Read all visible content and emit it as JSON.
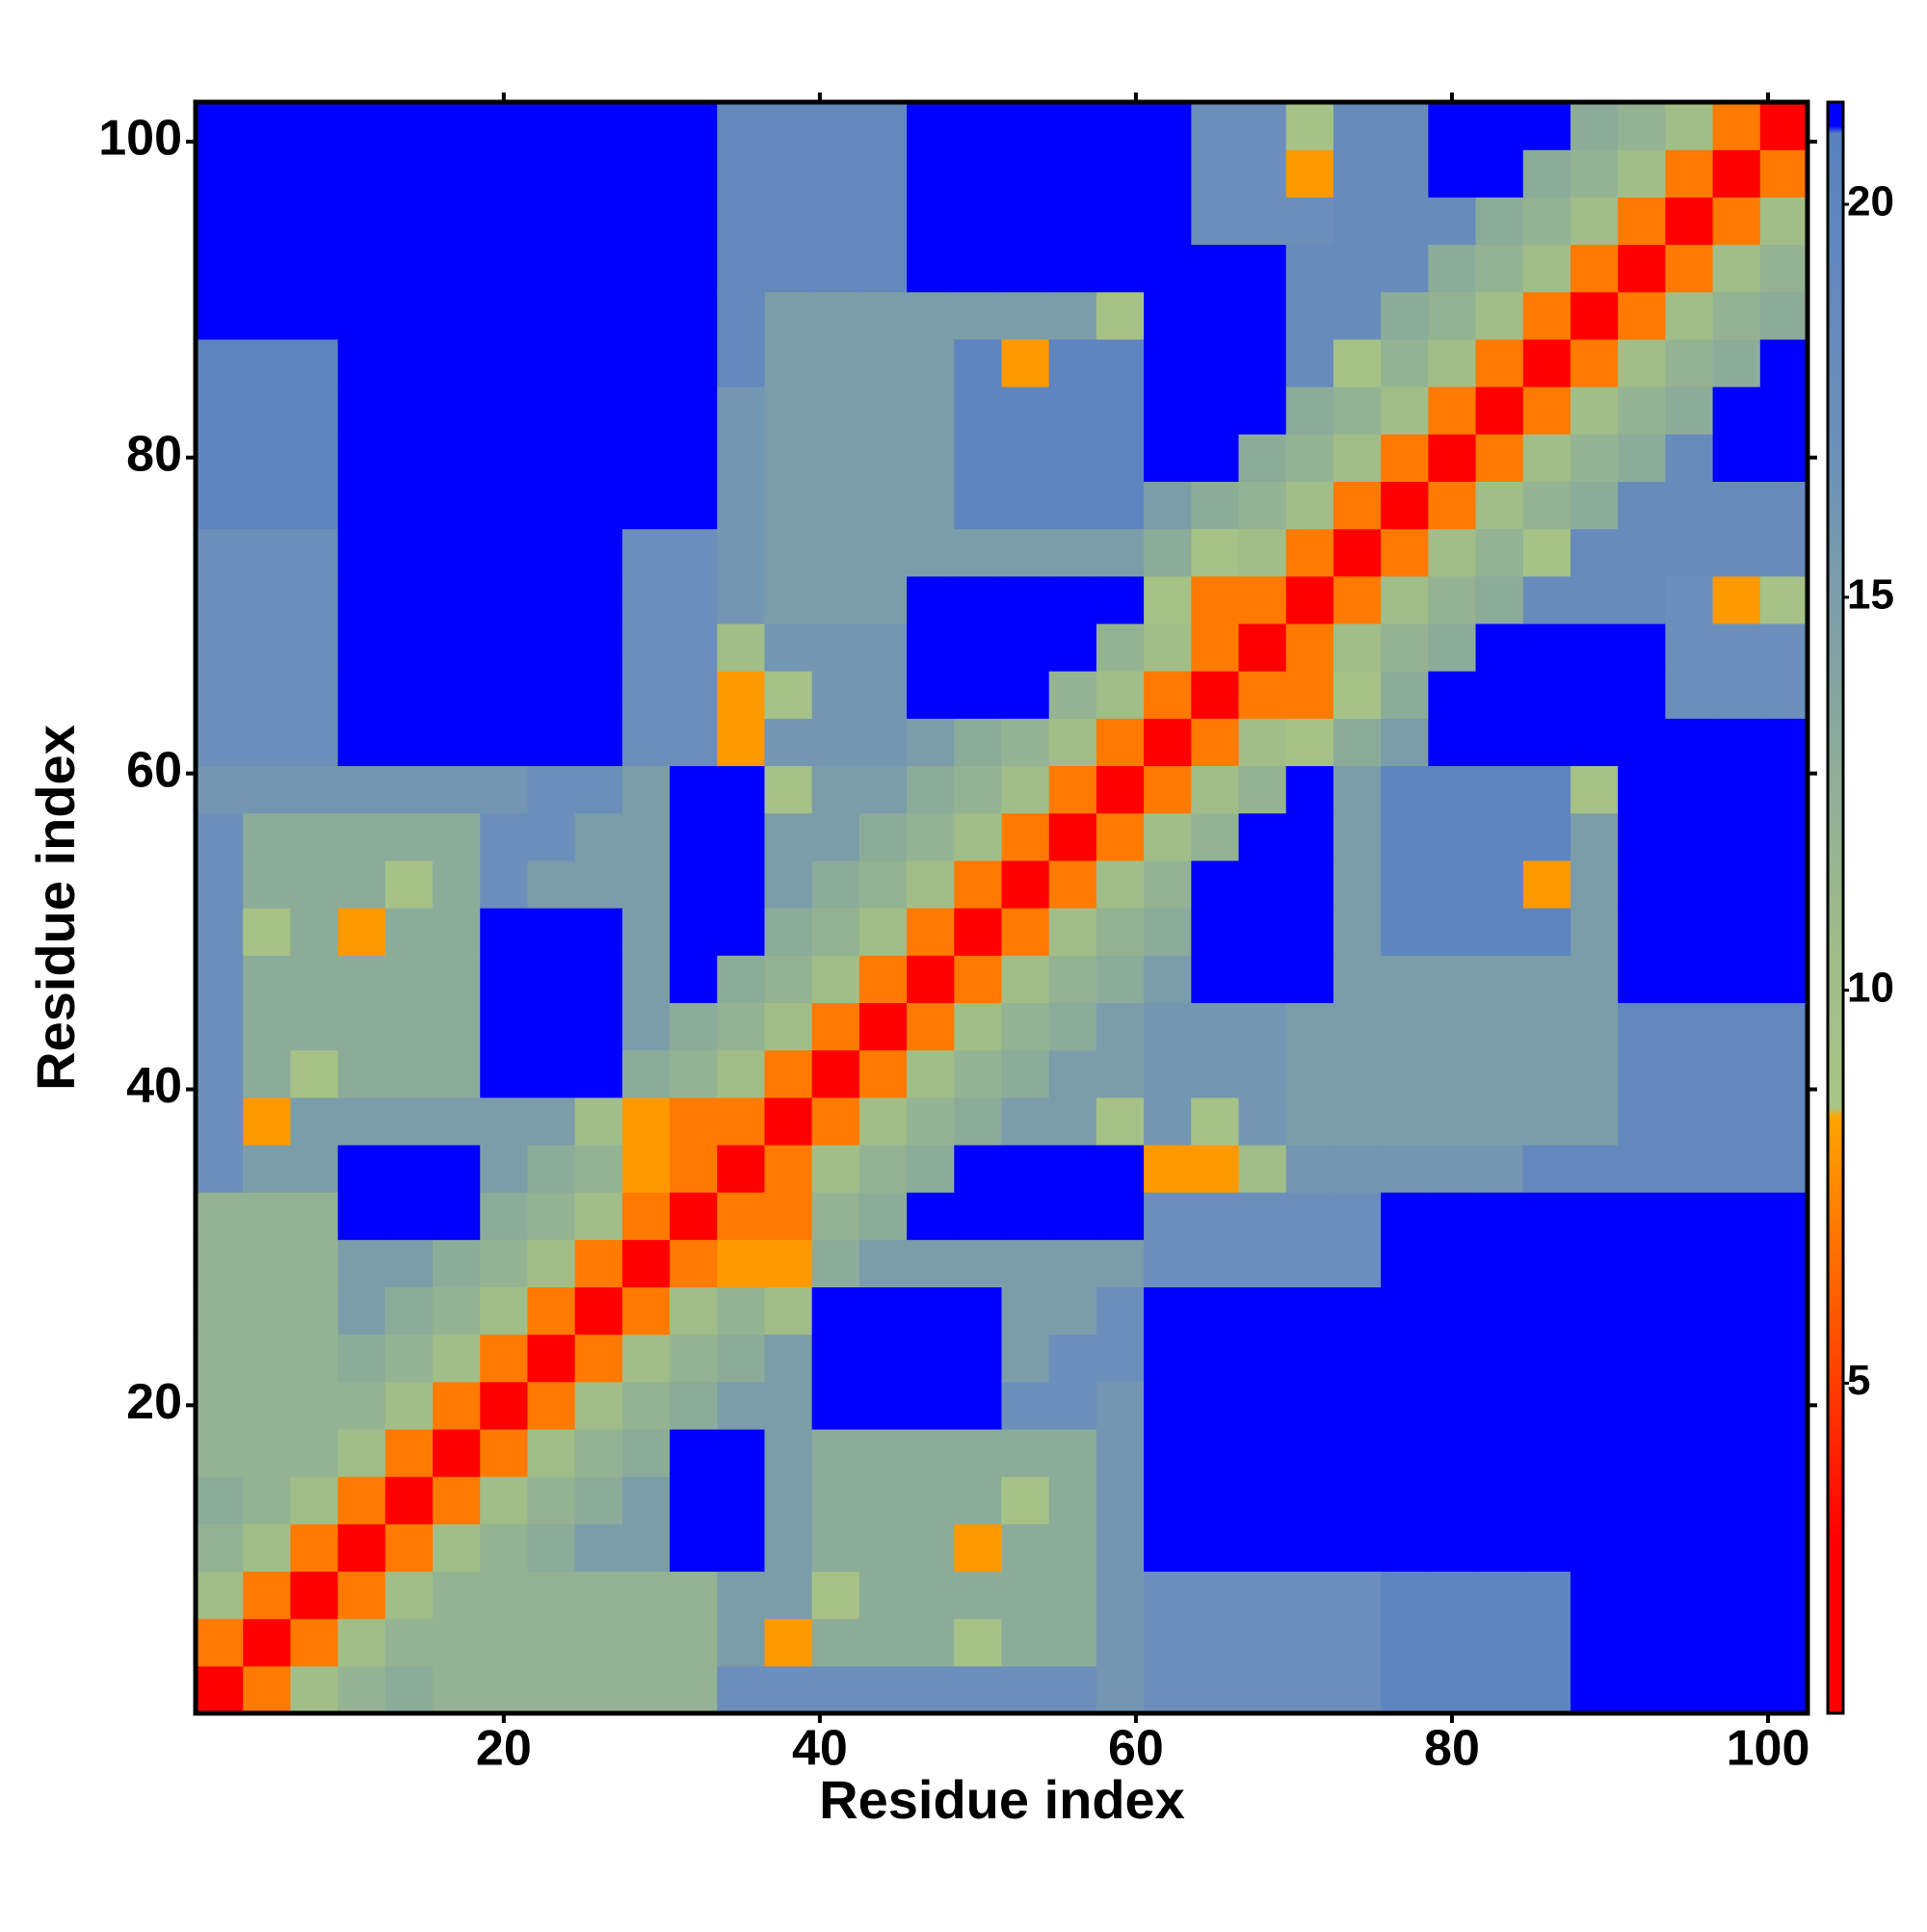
{
  "chart_data": {
    "type": "heatmap",
    "x_label": "Residue index",
    "y_label": "Residue index",
    "xbins": [
      0.5,
      3.5,
      6.5,
      9.5,
      12.5,
      15.5,
      18.5,
      21.5,
      24.5,
      27.5,
      30.5,
      33.5,
      36.5,
      39.5,
      42.5,
      45.5,
      48.5,
      51.5,
      54.5,
      57.5,
      60.5,
      63.5,
      66.5,
      69.5,
      72.5,
      75.5,
      78.5,
      81.5,
      84.5,
      87.5,
      90.5,
      93.5,
      96.5,
      99.5,
      102.5
    ],
    "ybins": [
      0.5,
      3.5,
      6.5,
      9.5,
      12.5,
      15.5,
      18.5,
      21.5,
      24.5,
      27.5,
      30.5,
      33.5,
      36.5,
      39.5,
      42.5,
      45.5,
      48.5,
      51.5,
      54.5,
      57.5,
      60.5,
      63.5,
      66.5,
      69.5,
      72.5,
      75.5,
      78.5,
      81.5,
      84.5,
      87.5,
      90.5,
      93.5,
      96.5,
      99.5,
      102.5
    ],
    "xlim": [
      0.5,
      102.5
    ],
    "ylim": [
      0.5,
      102.5
    ],
    "xticks": [
      20,
      40,
      60,
      80,
      100
    ],
    "yticks": [
      20,
      40,
      60,
      80,
      100
    ],
    "clim": [
      0.8,
      21.3
    ],
    "cticks": [
      5,
      10,
      15,
      20
    ],
    "colorscale": [
      {
        "value": 0.8,
        "color": "#ff0000"
      },
      {
        "value": 3,
        "color": "#ff0000"
      },
      {
        "value": 8.4,
        "color": "#ffa500"
      },
      {
        "value": 8.5,
        "color": "#a9c486"
      },
      {
        "value": 11,
        "color": "#9cba8a"
      },
      {
        "value": 17,
        "color": "#6b8fba"
      },
      {
        "value": 20.9,
        "color": "#5a82c0"
      },
      {
        "value": 21,
        "color": "#0000ff"
      },
      {
        "value": 21.3,
        "color": "#0000ff"
      }
    ],
    "values": [
      [
        3,
        7,
        10,
        12,
        13,
        12,
        12,
        12,
        12,
        12,
        12,
        17,
        17,
        17,
        17,
        17,
        17,
        17,
        17,
        16,
        17,
        17,
        17,
        17,
        17,
        20,
        20,
        20,
        20,
        22,
        22,
        22,
        22,
        22
      ],
      [
        7,
        3,
        7,
        10,
        12,
        12,
        12,
        12,
        12,
        12,
        12,
        15,
        8,
        13,
        13,
        13,
        9,
        13,
        13,
        16,
        17,
        17,
        17,
        17,
        17,
        20,
        20,
        20,
        20,
        22,
        22,
        22,
        22,
        22
      ],
      [
        10,
        7,
        3,
        7,
        10,
        12,
        12,
        12,
        12,
        12,
        12,
        15,
        15,
        9,
        13,
        13,
        13,
        13,
        13,
        16,
        17,
        17,
        17,
        17,
        17,
        20,
        20,
        20,
        20,
        22,
        22,
        22,
        22,
        22
      ],
      [
        12,
        10,
        7,
        3,
        7,
        10,
        12,
        13,
        15,
        15,
        22,
        22,
        15,
        13,
        13,
        13,
        8,
        13,
        13,
        16,
        22,
        22,
        22,
        22,
        22,
        22,
        22,
        22,
        22,
        22,
        22,
        22,
        22,
        22
      ],
      [
        13,
        12,
        10,
        7,
        3,
        7,
        10,
        12,
        13,
        15,
        22,
        22,
        15,
        13,
        13,
        13,
        13,
        9,
        13,
        16,
        22,
        22,
        22,
        22,
        22,
        22,
        22,
        22,
        22,
        22,
        22,
        22,
        22,
        22
      ],
      [
        12,
        12,
        12,
        10,
        7,
        3,
        7,
        10,
        12,
        13,
        22,
        22,
        15,
        13,
        13,
        13,
        13,
        13,
        13,
        16,
        22,
        22,
        22,
        22,
        22,
        22,
        22,
        22,
        22,
        22,
        22,
        22,
        22,
        22
      ],
      [
        12,
        12,
        12,
        12,
        10,
        7,
        3,
        7,
        10,
        12,
        13,
        15,
        15,
        22,
        22,
        22,
        22,
        17,
        17,
        16,
        22,
        22,
        22,
        22,
        22,
        22,
        22,
        22,
        22,
        22,
        22,
        22,
        22,
        22
      ],
      [
        12,
        12,
        12,
        13,
        12,
        10,
        7,
        3,
        7,
        10,
        12,
        13,
        15,
        22,
        22,
        22,
        22,
        15,
        17,
        17,
        22,
        22,
        22,
        22,
        22,
        22,
        22,
        22,
        22,
        22,
        22,
        22,
        22,
        22
      ],
      [
        12,
        12,
        12,
        15,
        13,
        12,
        10,
        7,
        3,
        7,
        10,
        12,
        10,
        22,
        22,
        22,
        22,
        15,
        15,
        17,
        22,
        22,
        22,
        22,
        22,
        22,
        22,
        22,
        22,
        22,
        22,
        22,
        22,
        22
      ],
      [
        12,
        12,
        12,
        15,
        15,
        13,
        12,
        10,
        7,
        3,
        7,
        8,
        8,
        13,
        15,
        15,
        15,
        15,
        15,
        15,
        17,
        17,
        17,
        17,
        17,
        22,
        22,
        22,
        22,
        22,
        22,
        22,
        22,
        22
      ],
      [
        12,
        12,
        12,
        22,
        22,
        22,
        13,
        12,
        10,
        7,
        3,
        7,
        7,
        12,
        13,
        22,
        22,
        22,
        22,
        22,
        17,
        17,
        17,
        17,
        17,
        22,
        22,
        22,
        22,
        22,
        22,
        22,
        22,
        22
      ],
      [
        17,
        15,
        15,
        22,
        22,
        22,
        15,
        13,
        12,
        8,
        7,
        3,
        7,
        10,
        12,
        13,
        22,
        22,
        22,
        22,
        8,
        8,
        10,
        16,
        16,
        16,
        16,
        16,
        19,
        19,
        19,
        19,
        19,
        19
      ],
      [
        17,
        8,
        15,
        15,
        15,
        15,
        15,
        15,
        10,
        8,
        7,
        7,
        3,
        7,
        10,
        12,
        13,
        15,
        15,
        9,
        16,
        9,
        16,
        15,
        15,
        15,
        15,
        15,
        15,
        15,
        19,
        19,
        19,
        19
      ],
      [
        17,
        13,
        9,
        13,
        13,
        13,
        22,
        22,
        22,
        13,
        12,
        10,
        7,
        3,
        7,
        10,
        12,
        13,
        15,
        15,
        16,
        16,
        16,
        15,
        15,
        15,
        15,
        15,
        15,
        15,
        19,
        19,
        19,
        19
      ],
      [
        17,
        13,
        13,
        13,
        13,
        13,
        22,
        22,
        22,
        15,
        13,
        12,
        10,
        7,
        3,
        7,
        10,
        12,
        13,
        15,
        16,
        16,
        16,
        15,
        15,
        15,
        15,
        15,
        15,
        15,
        19,
        19,
        19,
        19
      ],
      [
        17,
        13,
        13,
        13,
        13,
        13,
        22,
        22,
        22,
        15,
        22,
        13,
        12,
        10,
        7,
        3,
        7,
        10,
        12,
        13,
        15,
        22,
        22,
        22,
        15,
        15,
        15,
        15,
        15,
        15,
        22,
        22,
        22,
        22
      ],
      [
        17,
        9,
        13,
        8,
        13,
        13,
        22,
        22,
        22,
        15,
        22,
        22,
        13,
        12,
        10,
        7,
        3,
        7,
        10,
        12,
        13,
        22,
        22,
        22,
        15,
        20,
        20,
        20,
        20,
        15,
        22,
        22,
        22,
        22
      ],
      [
        17,
        13,
        13,
        13,
        9,
        13,
        17,
        15,
        15,
        15,
        22,
        22,
        15,
        13,
        12,
        10,
        7,
        3,
        7,
        10,
        12,
        22,
        22,
        22,
        15,
        20,
        20,
        20,
        8,
        15,
        22,
        22,
        22,
        22
      ],
      [
        17,
        13,
        13,
        13,
        13,
        13,
        17,
        17,
        15,
        15,
        22,
        22,
        15,
        15,
        13,
        12,
        10,
        7,
        3,
        7,
        10,
        12,
        22,
        22,
        15,
        20,
        20,
        20,
        20,
        15,
        22,
        22,
        22,
        22
      ],
      [
        16,
        16,
        16,
        16,
        16,
        16,
        16,
        17,
        17,
        15,
        22,
        22,
        9,
        15,
        15,
        13,
        12,
        10,
        7,
        3,
        7,
        10,
        12,
        22,
        15,
        20,
        20,
        20,
        20,
        9,
        22,
        22,
        22,
        22
      ],
      [
        17,
        17,
        17,
        22,
        22,
        22,
        22,
        22,
        22,
        17,
        17,
        8,
        16,
        16,
        16,
        15,
        13,
        12,
        10,
        7,
        3,
        7,
        10,
        9,
        13,
        15,
        22,
        22,
        22,
        22,
        22,
        22,
        22,
        22
      ],
      [
        17,
        17,
        17,
        22,
        22,
        22,
        22,
        22,
        22,
        17,
        17,
        8,
        9,
        16,
        16,
        22,
        22,
        22,
        12,
        10,
        7,
        3,
        7,
        7,
        9,
        13,
        22,
        22,
        22,
        22,
        22,
        17,
        17,
        17
      ],
      [
        17,
        17,
        17,
        22,
        22,
        22,
        22,
        22,
        22,
        17,
        17,
        10,
        16,
        16,
        16,
        22,
        22,
        22,
        22,
        12,
        10,
        7,
        3,
        7,
        10,
        12,
        13,
        22,
        22,
        22,
        22,
        17,
        17,
        17
      ],
      [
        17,
        17,
        17,
        22,
        22,
        22,
        22,
        22,
        22,
        17,
        17,
        16,
        15,
        15,
        15,
        22,
        22,
        22,
        22,
        22,
        9,
        7,
        7,
        3,
        7,
        10,
        12,
        13,
        18,
        18,
        18,
        17,
        8,
        9
      ],
      [
        17,
        17,
        17,
        22,
        22,
        22,
        22,
        22,
        22,
        17,
        17,
        16,
        15,
        15,
        15,
        15,
        15,
        15,
        15,
        15,
        13,
        9,
        10,
        7,
        3,
        7,
        10,
        12,
        9,
        18,
        18,
        18,
        18,
        18
      ],
      [
        20,
        20,
        20,
        22,
        22,
        22,
        22,
        22,
        22,
        22,
        22,
        16,
        15,
        15,
        15,
        15,
        20,
        20,
        20,
        20,
        15,
        13,
        12,
        10,
        7,
        3,
        7,
        10,
        12,
        13,
        18,
        18,
        18,
        18
      ],
      [
        20,
        20,
        20,
        22,
        22,
        22,
        22,
        22,
        22,
        22,
        22,
        16,
        15,
        15,
        15,
        15,
        20,
        20,
        20,
        20,
        22,
        22,
        13,
        12,
        10,
        7,
        3,
        7,
        10,
        12,
        13,
        18,
        22,
        22
      ],
      [
        20,
        20,
        20,
        22,
        22,
        22,
        22,
        22,
        22,
        22,
        22,
        16,
        15,
        15,
        15,
        15,
        20,
        20,
        20,
        20,
        22,
        22,
        22,
        13,
        12,
        10,
        7,
        3,
        7,
        10,
        12,
        13,
        22,
        22
      ],
      [
        20,
        20,
        20,
        22,
        22,
        22,
        22,
        22,
        22,
        22,
        22,
        19,
        15,
        15,
        15,
        15,
        20,
        8,
        20,
        20,
        22,
        22,
        22,
        18,
        9,
        12,
        10,
        7,
        3,
        7,
        10,
        12,
        13,
        22
      ],
      [
        22,
        22,
        22,
        22,
        22,
        22,
        22,
        22,
        22,
        22,
        22,
        19,
        15,
        15,
        15,
        15,
        15,
        15,
        15,
        9,
        22,
        22,
        22,
        18,
        18,
        13,
        12,
        10,
        7,
        3,
        7,
        10,
        12,
        13
      ],
      [
        22,
        22,
        22,
        22,
        22,
        22,
        22,
        22,
        22,
        22,
        22,
        19,
        19,
        19,
        19,
        22,
        22,
        22,
        22,
        22,
        22,
        22,
        22,
        18,
        18,
        18,
        13,
        12,
        10,
        7,
        3,
        7,
        10,
        12
      ],
      [
        22,
        22,
        22,
        22,
        22,
        22,
        22,
        22,
        22,
        22,
        22,
        19,
        19,
        19,
        19,
        22,
        22,
        22,
        22,
        22,
        22,
        17,
        17,
        17,
        18,
        18,
        18,
        13,
        12,
        10,
        7,
        3,
        7,
        10
      ],
      [
        22,
        22,
        22,
        22,
        22,
        22,
        22,
        22,
        22,
        22,
        22,
        19,
        19,
        19,
        19,
        22,
        22,
        22,
        22,
        22,
        22,
        17,
        17,
        8,
        18,
        18,
        22,
        22,
        13,
        12,
        10,
        7,
        3,
        7
      ],
      [
        22,
        22,
        22,
        22,
        22,
        22,
        22,
        22,
        22,
        22,
        22,
        19,
        19,
        19,
        19,
        22,
        22,
        22,
        22,
        22,
        22,
        17,
        17,
        9,
        18,
        18,
        22,
        22,
        22,
        13,
        12,
        10,
        7,
        3
      ]
    ]
  }
}
